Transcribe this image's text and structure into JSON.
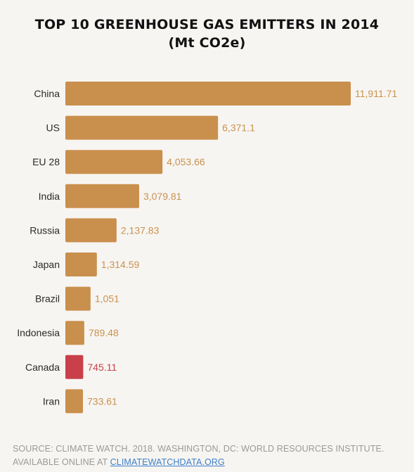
{
  "chart_data": {
    "type": "bar",
    "orientation": "horizontal",
    "title": "TOP 10 GREENHOUSE GAS EMITTERS IN 2014",
    "subtitle": "(Mt CO2e)",
    "categories": [
      "China",
      "US",
      "EU 28",
      "India",
      "Russia",
      "Japan",
      "Brazil",
      "Indonesia",
      "Canada",
      "Iran"
    ],
    "values": [
      11911.71,
      6371.1,
      4053.66,
      3079.81,
      2137.83,
      1314.59,
      1051,
      789.48,
      745.11,
      733.61
    ],
    "value_labels": [
      "11,911.71",
      "6,371.1",
      "4,053.66",
      "3,079.81",
      "2,137.83",
      "1,314.59",
      "1,051",
      "789.48",
      "745.11",
      "733.61"
    ],
    "highlight": "Canada",
    "colors": {
      "bar": "#c98f4c",
      "highlight": "#c9404a",
      "value_text": "#c9924f",
      "highlight_text": "#c9404a"
    },
    "xlim": [
      0,
      11911.71
    ]
  },
  "source": {
    "text": "SOURCE: CLIMATE WATCH. 2018. WASHINGTON, DC: WORLD RESOURCES INSTITUTE. AVAILABLE ONLINE AT",
    "link_text": "CLIMATEWATCHDATA.ORG"
  }
}
